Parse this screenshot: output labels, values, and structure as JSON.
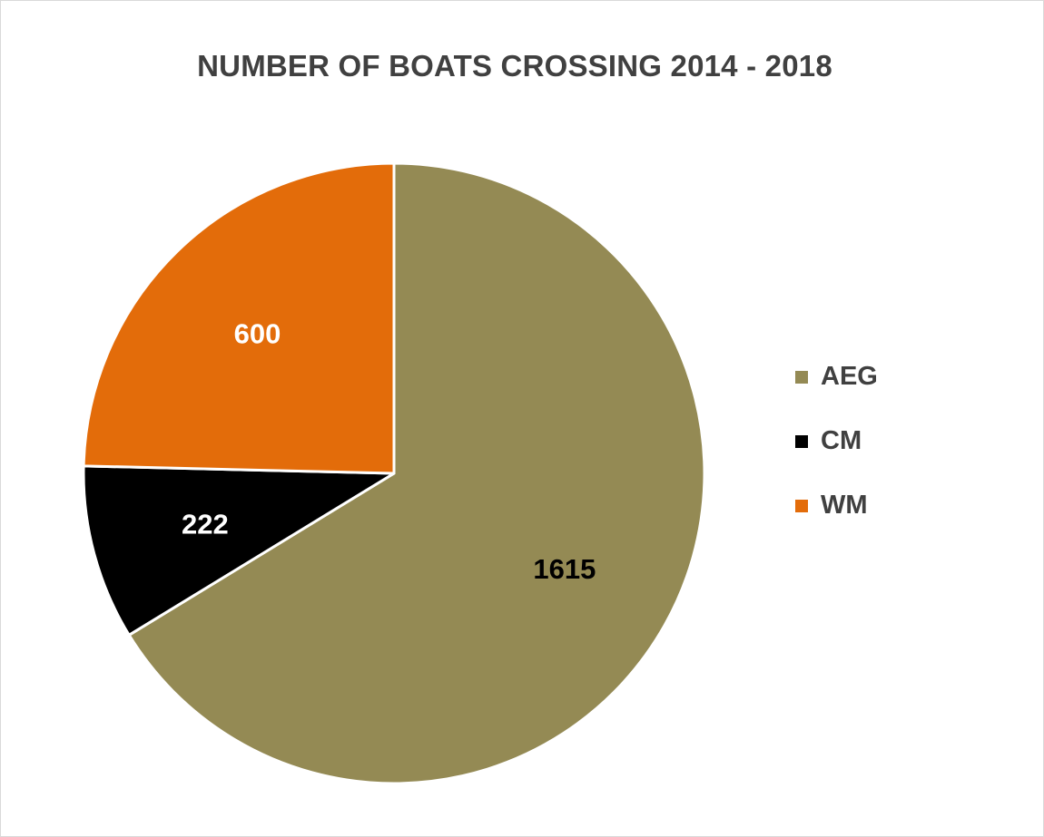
{
  "chart_data": {
    "type": "pie",
    "title": "NUMBER OF BOATS CROSSING 2014 - 2018",
    "slices": [
      {
        "label": "AEG",
        "value": 1615,
        "color": "#948a54",
        "label_color": "#000000"
      },
      {
        "label": "CM",
        "value": 222,
        "color": "#000000",
        "label_color": "#ffffff"
      },
      {
        "label": "WM",
        "value": 600,
        "color": "#e36c0a",
        "label_color": "#ffffff"
      }
    ],
    "legend_position": "right",
    "data_labels": true
  }
}
